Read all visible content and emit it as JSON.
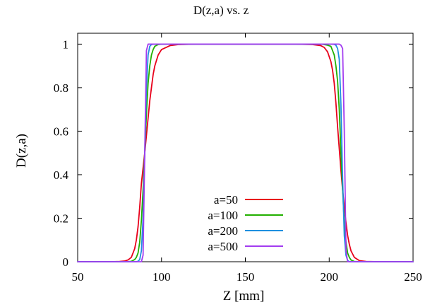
{
  "chart_data": {
    "type": "line",
    "title": "D(z,a) vs. z",
    "xlabel": "Z [mm]",
    "ylabel": "D(z,a)",
    "xlim": [
      50,
      250
    ],
    "ylim": [
      0,
      1.05
    ],
    "xticks": [
      50,
      100,
      150,
      200,
      250
    ],
    "xtick_labels": [
      "50",
      "100",
      "150",
      "200",
      "250"
    ],
    "yticks": [
      0,
      0.2,
      0.4,
      0.6,
      0.8,
      1
    ],
    "ytick_labels": [
      "0",
      "0.2",
      "0.4",
      "0.6",
      "0.8",
      "1"
    ],
    "grid": false,
    "legend_position": "bottom-center",
    "x": [
      50,
      70,
      75,
      78,
      80,
      82,
      84,
      85,
      86,
      87,
      88,
      89,
      90,
      91,
      92,
      93,
      94,
      95,
      96,
      98,
      100,
      105,
      110,
      120,
      150,
      180,
      190,
      195,
      197,
      199,
      201,
      202,
      203,
      204,
      205,
      206,
      207,
      208,
      209,
      210,
      211,
      212,
      213,
      215,
      218,
      222,
      230,
      250
    ],
    "series": [
      {
        "name": "a=50",
        "color": "#e8001a",
        "values": [
          0,
          0,
          0.001,
          0.003,
          0.008,
          0.02,
          0.06,
          0.1,
          0.16,
          0.25,
          0.36,
          0.43,
          0.5,
          0.58,
          0.66,
          0.74,
          0.8,
          0.86,
          0.9,
          0.95,
          0.975,
          0.993,
          0.998,
          1,
          1,
          1,
          0.998,
          0.993,
          0.985,
          0.965,
          0.92,
          0.88,
          0.82,
          0.73,
          0.62,
          0.52,
          0.42,
          0.33,
          0.25,
          0.18,
          0.12,
          0.08,
          0.05,
          0.02,
          0.005,
          0.001,
          0,
          0
        ]
      },
      {
        "name": "a=100",
        "color": "#22b000",
        "values": [
          0,
          0,
          0,
          0,
          0,
          0.002,
          0.01,
          0.02,
          0.04,
          0.09,
          0.19,
          0.33,
          0.5,
          0.68,
          0.82,
          0.9,
          0.95,
          0.975,
          0.99,
          0.998,
          1,
          1,
          1,
          1,
          1,
          1,
          1,
          1,
          0.998,
          0.995,
          0.99,
          0.97,
          0.95,
          0.9,
          0.83,
          0.7,
          0.5,
          0.33,
          0.18,
          0.09,
          0.04,
          0.02,
          0.008,
          0.001,
          0,
          0,
          0,
          0
        ]
      },
      {
        "name": "a=200",
        "color": "#1e90e0",
        "values": [
          0,
          0,
          0,
          0,
          0,
          0,
          0,
          0,
          0.002,
          0.01,
          0.05,
          0.2,
          0.5,
          0.8,
          0.95,
          0.99,
          0.998,
          1,
          1,
          1,
          1,
          1,
          1,
          1,
          1,
          1,
          1,
          1,
          1,
          1,
          1,
          1,
          0.999,
          0.995,
          0.98,
          0.93,
          0.72,
          0.38,
          0.12,
          0.03,
          0.006,
          0,
          0,
          0,
          0,
          0,
          0,
          0
        ]
      },
      {
        "name": "a=500",
        "color": "#a23cf0",
        "values": [
          0,
          0,
          0,
          0,
          0,
          0,
          0,
          0,
          0,
          0,
          0,
          0.03,
          0.5,
          0.97,
          1,
          1,
          1,
          1,
          1,
          1,
          1,
          1,
          1,
          1,
          1,
          1,
          1,
          1,
          1,
          1,
          1,
          1,
          1,
          1,
          1,
          1,
          0.995,
          0.98,
          0.6,
          0.05,
          0,
          0,
          0,
          0,
          0,
          0,
          0,
          0
        ]
      }
    ]
  }
}
